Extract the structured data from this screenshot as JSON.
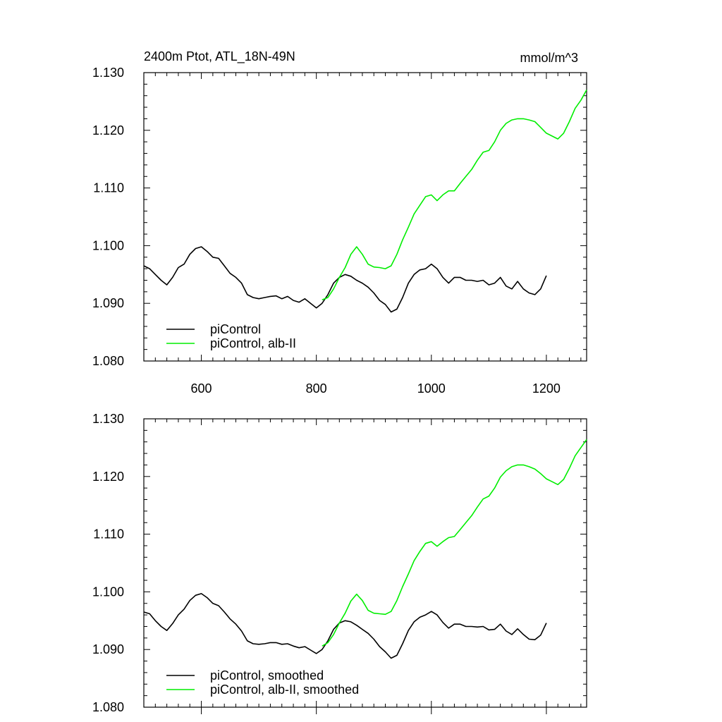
{
  "figure": {
    "title_left": "2400m Ptot, ATL_18N-49N",
    "title_right": "mmol/m^3"
  },
  "chart_data": [
    {
      "type": "line",
      "title": "2400m Ptot, ATL_18N-49N",
      "units": "mmol/m^3",
      "xlim": [
        500,
        1270
      ],
      "ylim": [
        1.08,
        1.13
      ],
      "x_ticks": [
        600,
        800,
        1000,
        1200
      ],
      "x_tick_labels": [
        "600",
        "800",
        "1000",
        "1200"
      ],
      "y_ticks": [
        1.08,
        1.09,
        1.1,
        1.11,
        1.12,
        1.13
      ],
      "y_tick_labels": [
        "1.080",
        "1.090",
        "1.100",
        "1.110",
        "1.120",
        "1.130"
      ],
      "legend_position": "bottom-left",
      "series": [
        {
          "name": "piControl",
          "color": "#000000",
          "x": [
            500,
            510,
            520,
            530,
            540,
            550,
            560,
            570,
            580,
            590,
            600,
            610,
            620,
            630,
            640,
            650,
            660,
            670,
            680,
            690,
            700,
            710,
            720,
            730,
            740,
            750,
            760,
            770,
            780,
            790,
            800,
            810,
            820,
            830,
            840,
            850,
            860,
            870,
            880,
            890,
            900,
            910,
            920,
            930,
            940,
            950,
            960,
            970,
            980,
            990,
            1000,
            1010,
            1020,
            1030,
            1040,
            1050,
            1060,
            1070,
            1080,
            1090,
            1100,
            1110,
            1120,
            1130,
            1140,
            1150,
            1160,
            1170,
            1180,
            1190,
            1200
          ],
          "y": [
            1.0965,
            1.096,
            1.095,
            1.094,
            1.0932,
            1.0945,
            1.0962,
            1.0968,
            1.0985,
            1.0995,
            1.0998,
            1.099,
            1.098,
            1.0978,
            1.0965,
            1.0952,
            1.0945,
            1.0935,
            1.0915,
            1.091,
            1.0908,
            1.091,
            1.0912,
            1.0913,
            1.0908,
            1.0912,
            1.0905,
            1.0902,
            1.0908,
            1.09,
            1.0892,
            1.09,
            1.0915,
            1.0935,
            1.0945,
            1.095,
            1.0947,
            1.094,
            1.0935,
            1.0928,
            1.0918,
            1.0905,
            1.0898,
            1.0885,
            1.089,
            1.091,
            1.0935,
            1.095,
            1.0958,
            1.096,
            1.0968,
            1.096,
            1.0945,
            1.0935,
            1.0945,
            1.0945,
            1.094,
            1.094,
            1.0938,
            1.094,
            1.0932,
            1.0935,
            1.0945,
            1.093,
            1.0925,
            1.0938,
            1.0925,
            1.0918,
            1.0915,
            1.0925,
            1.0948
          ]
        },
        {
          "name": "piControl, alb-II",
          "color": "#00ee00",
          "x": [
            810,
            820,
            830,
            840,
            850,
            860,
            870,
            880,
            890,
            900,
            910,
            920,
            930,
            940,
            950,
            960,
            970,
            980,
            990,
            1000,
            1010,
            1020,
            1030,
            1040,
            1050,
            1060,
            1070,
            1080,
            1090,
            1100,
            1110,
            1120,
            1130,
            1140,
            1150,
            1160,
            1170,
            1180,
            1190,
            1200,
            1210,
            1220,
            1230,
            1240,
            1250,
            1260,
            1270
          ],
          "y": [
            1.0906,
            1.091,
            1.0925,
            1.0945,
            1.0962,
            1.0985,
            1.0998,
            1.0985,
            1.0968,
            1.0963,
            1.0962,
            1.096,
            1.0965,
            1.0985,
            1.101,
            1.1032,
            1.1055,
            1.107,
            1.1085,
            1.1088,
            1.1078,
            1.1088,
            1.1095,
            1.1095,
            1.1108,
            1.112,
            1.1132,
            1.1148,
            1.1162,
            1.1165,
            1.118,
            1.12,
            1.1212,
            1.1218,
            1.122,
            1.122,
            1.1218,
            1.1215,
            1.1205,
            1.1195,
            1.119,
            1.1185,
            1.1195,
            1.1215,
            1.1238,
            1.1252,
            1.127
          ]
        }
      ]
    },
    {
      "type": "line",
      "xlim": [
        500,
        1270
      ],
      "ylim": [
        1.08,
        1.13
      ],
      "x_ticks": [
        600,
        800,
        1000,
        1200
      ],
      "x_tick_labels": [],
      "y_ticks": [
        1.08,
        1.09,
        1.1,
        1.11,
        1.12,
        1.13
      ],
      "y_tick_labels": [
        "1.080",
        "1.090",
        "1.100",
        "1.110",
        "1.120",
        "1.130"
      ],
      "legend_position": "bottom-left",
      "series": [
        {
          "name": "piControl, smoothed",
          "color": "#000000",
          "x": [
            500,
            510,
            520,
            530,
            540,
            550,
            560,
            570,
            580,
            590,
            600,
            610,
            620,
            630,
            640,
            650,
            660,
            670,
            680,
            690,
            700,
            710,
            720,
            730,
            740,
            750,
            760,
            770,
            780,
            790,
            800,
            810,
            820,
            830,
            840,
            850,
            860,
            870,
            880,
            890,
            900,
            910,
            920,
            930,
            940,
            950,
            960,
            970,
            980,
            990,
            1000,
            1010,
            1020,
            1030,
            1040,
            1050,
            1060,
            1070,
            1080,
            1090,
            1100,
            1110,
            1120,
            1130,
            1140,
            1150,
            1160,
            1170,
            1180,
            1190,
            1200
          ],
          "y": [
            1.0965,
            1.0962,
            1.095,
            1.094,
            1.0933,
            1.0945,
            1.096,
            1.097,
            1.0985,
            1.0994,
            1.0997,
            1.099,
            1.098,
            1.0976,
            1.0965,
            1.0953,
            1.0944,
            1.0932,
            1.0915,
            1.091,
            1.0909,
            1.091,
            1.0912,
            1.0912,
            1.0909,
            1.091,
            1.0906,
            1.0903,
            1.0905,
            1.0899,
            1.0893,
            1.09,
            1.0915,
            1.0935,
            1.0946,
            1.095,
            1.0948,
            1.0942,
            1.0935,
            1.0928,
            1.0918,
            1.0905,
            1.0896,
            1.0885,
            1.089,
            1.091,
            1.0933,
            1.0948,
            1.0956,
            1.096,
            1.0966,
            1.096,
            1.0947,
            1.0937,
            1.0944,
            1.0944,
            1.094,
            1.094,
            1.0939,
            1.094,
            1.0934,
            1.0935,
            1.0944,
            1.0932,
            1.0926,
            1.0936,
            1.0926,
            1.0918,
            1.0917,
            1.0925,
            1.0946
          ]
        },
        {
          "name": "piControl, alb-II, smoothed",
          "color": "#00ee00",
          "x": [
            810,
            820,
            830,
            840,
            850,
            860,
            870,
            880,
            890,
            900,
            910,
            920,
            930,
            940,
            950,
            960,
            970,
            980,
            990,
            1000,
            1010,
            1020,
            1030,
            1040,
            1050,
            1060,
            1070,
            1080,
            1090,
            1100,
            1110,
            1120,
            1130,
            1140,
            1150,
            1160,
            1170,
            1180,
            1190,
            1200,
            1210,
            1220,
            1230,
            1240,
            1250,
            1260,
            1270
          ],
          "y": [
            1.0906,
            1.0912,
            1.0926,
            1.0946,
            1.0963,
            1.0984,
            1.0996,
            1.0985,
            1.0968,
            1.0963,
            1.0962,
            1.0961,
            1.0966,
            1.0985,
            1.1009,
            1.1031,
            1.1054,
            1.107,
            1.1084,
            1.1087,
            1.1079,
            1.1087,
            1.1094,
            1.1096,
            1.1108,
            1.112,
            1.1132,
            1.1147,
            1.1161,
            1.1166,
            1.118,
            1.1199,
            1.121,
            1.1217,
            1.122,
            1.122,
            1.1217,
            1.1213,
            1.1205,
            1.1196,
            1.1191,
            1.1186,
            1.1195,
            1.1214,
            1.1236,
            1.125,
            1.1264
          ]
        }
      ]
    }
  ]
}
